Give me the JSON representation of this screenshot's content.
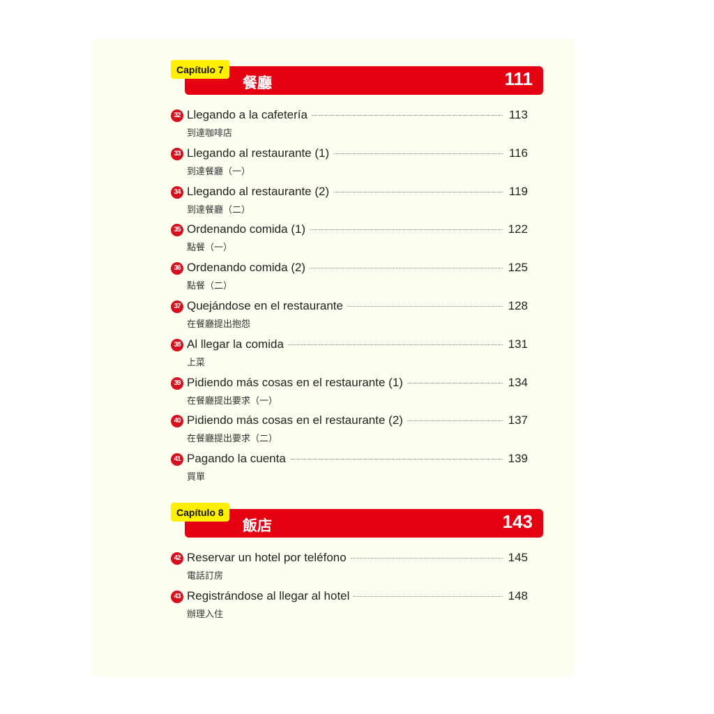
{
  "chapters": [
    {
      "label": "Capítulo 7",
      "title": "餐廳",
      "page": "111",
      "entries": [
        {
          "n": "32",
          "title": "Llegando a la cafetería",
          "sub": "到達咖啡店",
          "page": "113"
        },
        {
          "n": "33",
          "title": "Llegando al restaurante (1)",
          "sub": "到達餐廳（一）",
          "page": "116"
        },
        {
          "n": "34",
          "title": "Llegando al restaurante (2)",
          "sub": "到達餐廳（二）",
          "page": "119"
        },
        {
          "n": "35",
          "title": "Ordenando comida (1)",
          "sub": "點餐（一）",
          "page": "122"
        },
        {
          "n": "36",
          "title": "Ordenando comida (2)",
          "sub": "點餐（二）",
          "page": "125"
        },
        {
          "n": "37",
          "title": "Quejándose en el restaurante",
          "sub": "在餐廳提出抱怨",
          "page": "128"
        },
        {
          "n": "38",
          "title": "Al llegar la comida",
          "sub": "上菜",
          "page": "131"
        },
        {
          "n": "39",
          "title": "Pidiendo más cosas en el restaurante (1)",
          "sub": "在餐廳提出要求（一）",
          "page": "134"
        },
        {
          "n": "40",
          "title": "Pidiendo más cosas en el restaurante (2)",
          "sub": "在餐廳提出要求（二）",
          "page": "137"
        },
        {
          "n": "41",
          "title": "Pagando la cuenta",
          "sub": "買單",
          "page": "139"
        }
      ]
    },
    {
      "label": "Capítulo 8",
      "title": "飯店",
      "page": "143",
      "entries": [
        {
          "n": "42",
          "title": "Reservar un hotel por teléfono",
          "sub": "電話訂房",
          "page": "145"
        },
        {
          "n": "43",
          "title": "Registrándose al llegar al hotel",
          "sub": "辦理入住",
          "page": "148"
        }
      ]
    }
  ]
}
